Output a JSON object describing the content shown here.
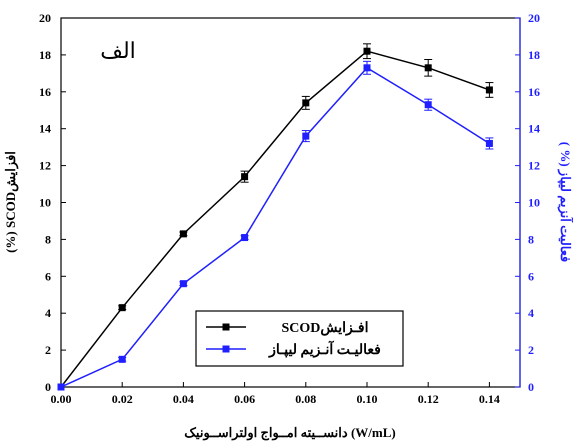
{
  "colors": {
    "series1": "#000000",
    "series2": "#1f1fff",
    "axis_left": "#000000",
    "axis_right": "#1f1fff"
  },
  "chart_data": {
    "type": "line",
    "panel_label": "الف",
    "xlabel": "دانســیته امــواج اولتراســونیک (W/mL)",
    "ylabel_left": "(%) SCODافزایش",
    "ylabel_right": "( %) فعالیت آنزیم لیپاز",
    "x": [
      0.0,
      0.02,
      0.04,
      0.06,
      0.08,
      0.1,
      0.12,
      0.14
    ],
    "x_tick_labels": [
      "0.00",
      "0.02",
      "0.04",
      "0.06",
      "0.08",
      "0.10",
      "0.12",
      "0.14"
    ],
    "xlim": [
      0.0,
      0.15
    ],
    "ylim": [
      0,
      20
    ],
    "y_tick_labels": [
      "0",
      "2",
      "4",
      "6",
      "8",
      "10",
      "12",
      "14",
      "16",
      "18",
      "20"
    ],
    "y2lim": [
      0,
      20
    ],
    "y2_tick_labels": [
      "0",
      "2",
      "4",
      "6",
      "8",
      "10",
      "12",
      "14",
      "16",
      "18",
      "20"
    ],
    "grid": false,
    "legend_position": "bottom-right",
    "series": [
      {
        "name": "SCODافـزایش",
        "color": "#000000",
        "axis": "left",
        "values": [
          0.0,
          4.3,
          8.3,
          11.4,
          15.4,
          18.2,
          17.3,
          16.1
        ],
        "errors": [
          0.0,
          0.1,
          0.1,
          0.3,
          0.35,
          0.4,
          0.45,
          0.4
        ]
      },
      {
        "name": "فعالیـت آنـزیم لیپـاز",
        "color": "#1f1fff",
        "axis": "right",
        "values": [
          0.0,
          1.5,
          5.6,
          8.1,
          13.6,
          17.3,
          15.3,
          13.2
        ],
        "errors": [
          0.0,
          0.1,
          0.1,
          0.1,
          0.3,
          0.35,
          0.3,
          0.3
        ]
      }
    ]
  }
}
